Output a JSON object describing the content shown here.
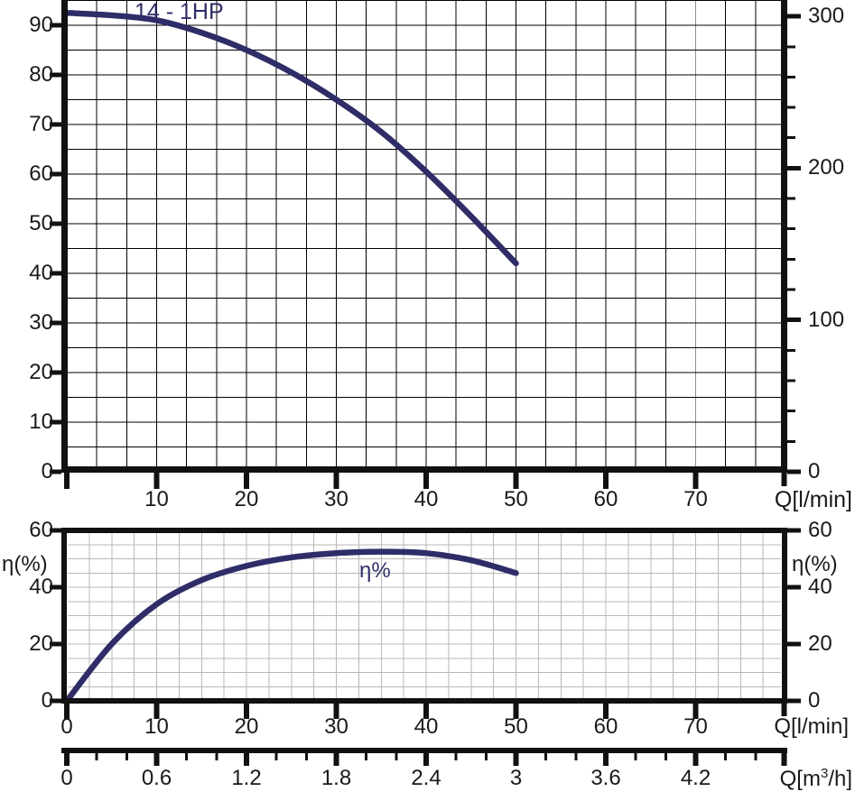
{
  "colors": {
    "background": "#ffffff",
    "curve": "#2e2d68",
    "axis": "#111111",
    "text": "#1a1a1a",
    "grid_dark": "#000000",
    "grid_faint": "#8f8f8f",
    "grid_light": "#b8b8b8"
  },
  "head_chart": {
    "curve_label": "14 - 1HP",
    "x_unit_label": "Q[l/min]",
    "x_tick_labels": [
      "10",
      "20",
      "30",
      "40",
      "50",
      "60",
      "70"
    ],
    "y_left_tick_labels": [
      "0",
      "10",
      "20",
      "30",
      "40",
      "50",
      "60",
      "70",
      "80",
      "90"
    ],
    "y_right_tick_labels": [
      "0",
      "100",
      "200",
      "300"
    ]
  },
  "eff_chart": {
    "curve_label": "η%",
    "y_axis_label_left": "η(%)",
    "y_axis_label_right": "η(%)",
    "x_unit_label": "Q[l/min]",
    "x_tick_labels": [
      "0",
      "10",
      "20",
      "30",
      "40",
      "50",
      "60",
      "70"
    ],
    "y_tick_labels_left": [
      "0",
      "20",
      "40",
      "60"
    ],
    "y_tick_labels_right": [
      "0",
      "20",
      "40",
      "60"
    ]
  },
  "m3h_axis": {
    "unit_label_parts": {
      "pre": "Q[m",
      "sup": "3",
      "post": "/h]"
    },
    "tick_labels": [
      "0",
      "0.6",
      "1.2",
      "1.8",
      "2.4",
      "3",
      "3.6",
      "4.2"
    ]
  },
  "chart_data": [
    {
      "type": "line",
      "name": "head-flow-curve",
      "title": "14 - 1HP",
      "xlabel": "Q[l/min]",
      "series": [
        {
          "name": "14 - 1HP",
          "x": [
            0,
            5,
            10,
            15,
            20,
            25,
            30,
            35,
            40,
            45,
            50
          ],
          "y": [
            92.5,
            92,
            91,
            88.5,
            85,
            80.5,
            75,
            68.5,
            60.5,
            51.5,
            42
          ]
        }
      ],
      "x_ticks": [
        10,
        20,
        30,
        40,
        50,
        60,
        70
      ],
      "x_range_visible": [
        0,
        80
      ],
      "y_left_ticks": [
        0,
        10,
        20,
        30,
        40,
        50,
        60,
        70,
        80,
        90
      ],
      "y_left_range_visible": [
        0,
        95
      ],
      "y_right_ticks": [
        0,
        100,
        200,
        300
      ],
      "y_right_minor_step": 20,
      "y_right_range_visible": [
        0,
        311
      ],
      "grid": "on",
      "legend": "none"
    },
    {
      "type": "line",
      "name": "efficiency-curve",
      "title": "η%",
      "xlabel": "Q[l/min]",
      "ylabel": "η(%)",
      "series": [
        {
          "name": "η%",
          "x": [
            0,
            5,
            10,
            15,
            20,
            25,
            30,
            35,
            40,
            45,
            50
          ],
          "y": [
            0,
            20,
            34,
            42.5,
            47.5,
            50.5,
            52,
            52.5,
            52,
            49.5,
            45
          ]
        }
      ],
      "x_ticks": [
        0,
        10,
        20,
        30,
        40,
        50,
        60,
        70
      ],
      "x_range": [
        0,
        80
      ],
      "y_ticks": [
        0,
        20,
        40,
        60
      ],
      "y_range": [
        0,
        60
      ],
      "grid": "on",
      "legend": "none",
      "secondary_x_axis": {
        "label": "Q[m3/h]",
        "ticks": [
          0,
          0.6,
          1.2,
          1.8,
          2.4,
          3,
          3.6,
          4.2
        ],
        "minor_step": 0.2,
        "range": [
          0,
          4.8
        ]
      }
    }
  ]
}
